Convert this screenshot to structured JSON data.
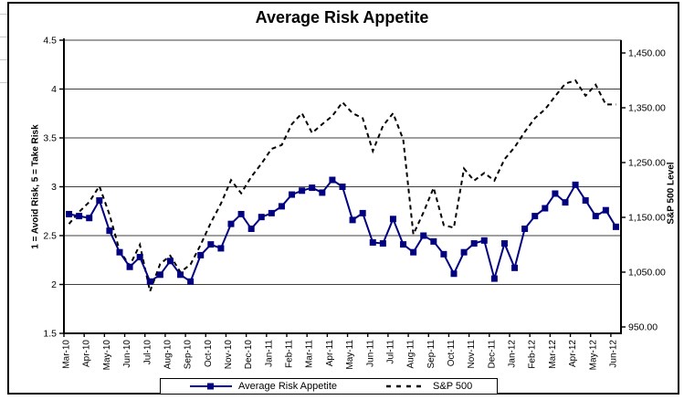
{
  "title": "Average Risk Appetite",
  "legend": {
    "series1_label": "Average Risk Appetite",
    "series2_label": "S&P 500"
  },
  "colors": {
    "risk_series": "#000080",
    "sp500_series": "#000000",
    "gridline": "#3f3f3f",
    "axis": "#000000",
    "text": "#000000"
  },
  "chart_data": {
    "type": "line",
    "title": "Average Risk Appetite",
    "grid": "horizontal",
    "legend_position": "bottom",
    "points_per_month": 2,
    "x_month_labels": [
      "Mar-10",
      "Apr-10",
      "May-10",
      "Jun-10",
      "Jul-10",
      "Aug-10",
      "Sep-10",
      "Oct-10",
      "Nov-10",
      "Dec-10",
      "Jan-11",
      "Feb-11",
      "Mar-11",
      "Apr-11",
      "May-11",
      "Jun-11",
      "Jul-11",
      "Aug-11",
      "Sep-11",
      "Oct-11",
      "Nov-11",
      "Dec-11",
      "Jan-12",
      "Feb-12",
      "Mar-12",
      "Apr-12",
      "May-12",
      "Jun-12"
    ],
    "y_left_axis": {
      "label": "1 = Avoid Risk, 5 = Take Risk",
      "min": 1.5,
      "max": 4.5,
      "tick_step": 0.5,
      "tick_labels": [
        "4.5",
        "4",
        "3.5",
        "3",
        "2.5",
        "2",
        "1.5"
      ]
    },
    "y_right_axis": {
      "label": "S&P 500 Level",
      "min": 950,
      "max": 1450,
      "tick_step": 100,
      "tick_labels": [
        "1,450.00",
        "1,350.00",
        "1,250.00",
        "1,150.00",
        "1,050.00",
        "950.00"
      ]
    },
    "series": [
      {
        "name": "Average Risk Appetite",
        "axis": "left",
        "color": "#000080",
        "line_style": "solid",
        "marker": "square",
        "values": [
          2.72,
          2.7,
          2.68,
          2.86,
          2.55,
          2.33,
          2.18,
          2.28,
          2.03,
          2.1,
          2.24,
          2.1,
          2.03,
          2.3,
          2.41,
          2.37,
          2.62,
          2.72,
          2.57,
          2.69,
          2.73,
          2.8,
          2.92,
          2.96,
          2.99,
          2.94,
          3.07,
          3.0,
          2.66,
          2.73,
          2.43,
          2.42,
          2.67,
          2.41,
          2.33,
          2.5,
          2.44,
          2.31,
          2.11,
          2.33,
          2.42,
          2.45,
          2.06,
          2.42,
          2.17,
          2.57,
          2.7,
          2.78,
          2.93,
          2.84,
          3.02,
          2.86,
          2.7,
          2.76,
          2.59
        ]
      },
      {
        "name": "S&P 500",
        "axis": "right",
        "color": "#000000",
        "line_style": "dashed",
        "marker": "none",
        "values": [
          1138,
          1160,
          1178,
          1207,
          1155,
          1089,
          1062,
          1100,
          1015,
          1065,
          1080,
          1050,
          1064,
          1100,
          1140,
          1175,
          1218,
          1194,
          1224,
          1248,
          1275,
          1282,
          1320,
          1340,
          1304,
          1320,
          1335,
          1360,
          1340,
          1331,
          1271,
          1317,
          1340,
          1292,
          1119,
          1159,
          1204,
          1136,
          1131,
          1239,
          1217,
          1231,
          1217,
          1256,
          1278,
          1306,
          1331,
          1347,
          1371,
          1394,
          1400,
          1372,
          1392,
          1356,
          1356
        ]
      }
    ]
  }
}
